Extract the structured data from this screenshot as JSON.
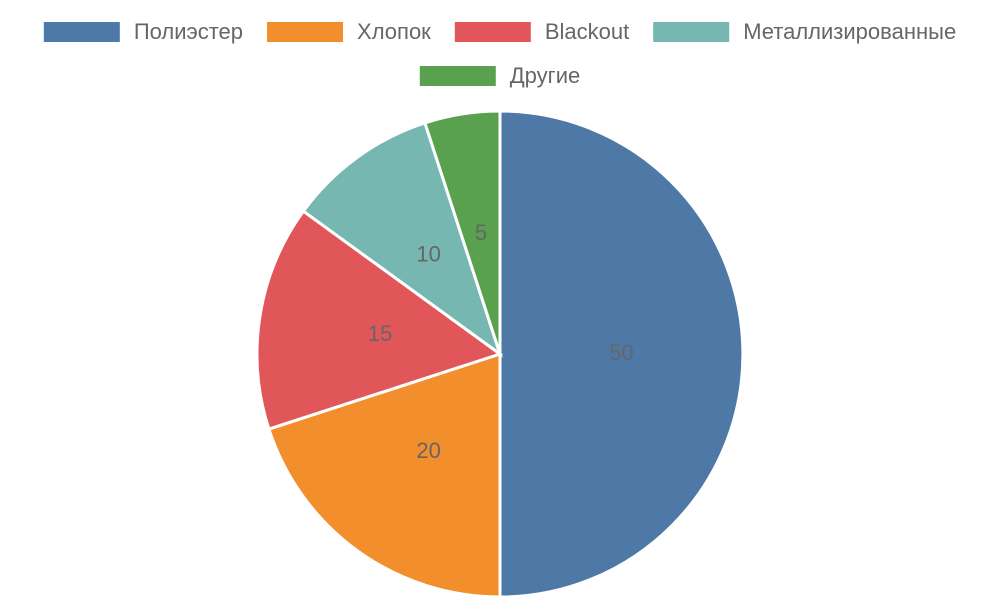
{
  "chart_data": {
    "type": "pie",
    "categories": [
      "Полиэстер",
      "Хлопок",
      "Blackout",
      "Металлизированные",
      "Другие"
    ],
    "values": [
      50,
      20,
      15,
      10,
      5
    ],
    "colors": [
      "#4e79a7",
      "#f28e2b",
      "#e15759",
      "#76b7b2",
      "#59a14f"
    ],
    "legend": "top"
  }
}
